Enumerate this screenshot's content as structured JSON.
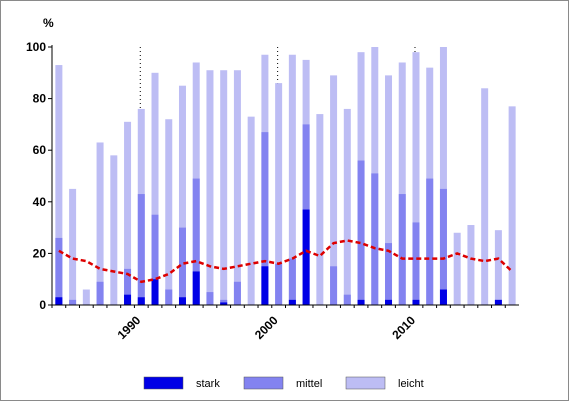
{
  "chart_data": {
    "type": "bar",
    "ylabel": "%",
    "ylim": [
      0,
      100
    ],
    "yticks": [
      "0",
      "20",
      "40",
      "60",
      "80",
      "100"
    ],
    "x": [
      1984,
      1985,
      1986,
      1987,
      1988,
      1989,
      1990,
      1991,
      1992,
      1993,
      1994,
      1995,
      1996,
      1997,
      1998,
      1999,
      2000,
      2001,
      2002,
      2003,
      2004,
      2005,
      2006,
      2007,
      2008,
      2009,
      2010,
      2011,
      2012,
      2013,
      2014,
      2015,
      2016,
      2017
    ],
    "xtick_labels": [
      {
        "year": 1990,
        "label": "1990"
      },
      {
        "year": 2000,
        "label": "2000"
      },
      {
        "year": 2010,
        "label": "2010"
      }
    ],
    "reference_years": [
      1990,
      2000,
      2010
    ],
    "series": [
      {
        "name": "leicht",
        "color": "#bdbdf4",
        "values": [
          93,
          45,
          6,
          63,
          58,
          71,
          76,
          90,
          72,
          85,
          94,
          91,
          91,
          91,
          73,
          97,
          86,
          97,
          95,
          74,
          89,
          76,
          98,
          100,
          89,
          94,
          98,
          92,
          100,
          28,
          31,
          84,
          29,
          77
        ]
      },
      {
        "name": "mittel",
        "color": "#8383f0",
        "values": [
          26,
          2,
          0,
          9,
          0,
          14,
          43,
          35,
          6,
          30,
          49,
          5,
          2,
          9,
          0,
          67,
          16,
          18,
          70,
          0,
          15,
          4,
          56,
          51,
          24,
          43,
          32,
          49,
          45,
          0,
          0,
          0,
          0,
          0
        ]
      },
      {
        "name": "stark",
        "color": "#0000e6",
        "values": [
          3,
          0,
          0,
          0,
          0,
          4,
          3,
          10,
          0,
          3,
          13,
          0,
          1,
          0,
          0,
          15,
          0,
          2,
          37,
          0,
          0,
          0,
          2,
          0,
          2,
          0,
          2,
          0,
          6,
          0,
          0,
          0,
          2,
          0
        ]
      }
    ],
    "trend": {
      "color": "#dd0000",
      "values": [
        21,
        18,
        17,
        14,
        13,
        12,
        9,
        10,
        12,
        16,
        17,
        15,
        14,
        15,
        16,
        17,
        16,
        18,
        21,
        19,
        24,
        25,
        24,
        22,
        21,
        18,
        18,
        18,
        18,
        20,
        18,
        17,
        18,
        13
      ]
    },
    "grid": false,
    "legend_position": "bottom"
  }
}
